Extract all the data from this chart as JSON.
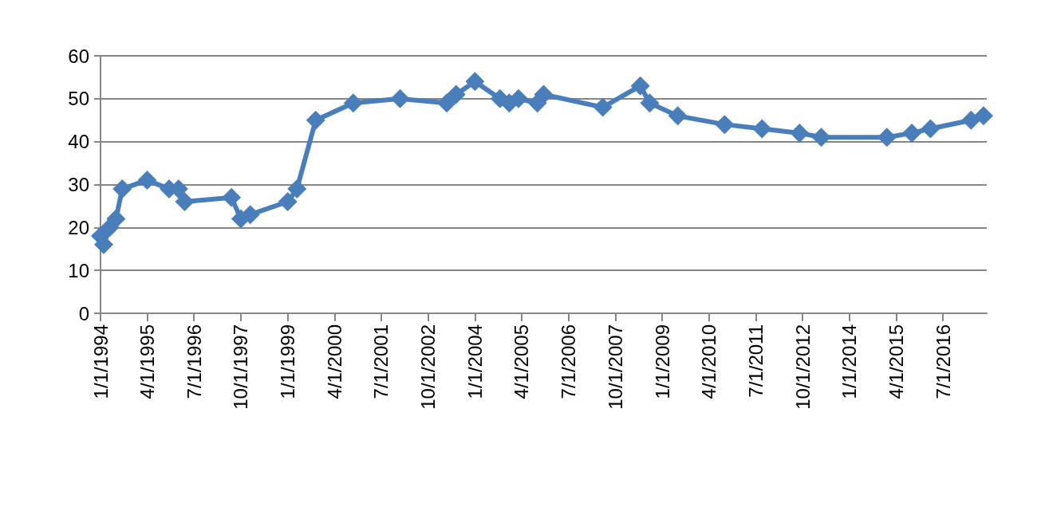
{
  "chart_data": {
    "type": "line",
    "x": [
      "1994-01",
      "1994-02",
      "1994-04",
      "1994-06",
      "1994-08",
      "1995-04",
      "1995-11",
      "1996-02",
      "1996-04",
      "1997-07",
      "1997-10",
      "1998-01",
      "1999-01",
      "1999-04",
      "1999-10",
      "2000-10",
      "2002-01",
      "2003-04",
      "2003-07",
      "2004-01",
      "2004-09",
      "2004-12",
      "2005-03",
      "2005-09",
      "2005-11",
      "2007-06",
      "2008-06",
      "2008-09",
      "2009-06",
      "2010-09",
      "2011-09",
      "2012-09",
      "2013-04",
      "2015-01",
      "2015-09",
      "2016-03",
      "2017-04",
      "2017-08"
    ],
    "series": [
      {
        "color": "#4a7ebb",
        "values": [
          18,
          16,
          20,
          22,
          29,
          31,
          29,
          29,
          26,
          27,
          22,
          23,
          26,
          29,
          45,
          49,
          50,
          49,
          51,
          54,
          50,
          49,
          50,
          49,
          51,
          48,
          53,
          49,
          46,
          44,
          43,
          42,
          41,
          41,
          42,
          43,
          45,
          46
        ]
      }
    ],
    "xlim": [
      "1994-01-01",
      "2017-09-01"
    ],
    "xticks": [
      {
        "value": "1994-01-01",
        "label": "1/1/1994"
      },
      {
        "value": "1995-04-01",
        "label": "4/1/1995"
      },
      {
        "value": "1996-07-01",
        "label": "7/1/1996"
      },
      {
        "value": "1997-10-01",
        "label": "10/1/1997"
      },
      {
        "value": "1999-01-01",
        "label": "1/1/1999"
      },
      {
        "value": "2000-04-01",
        "label": "4/1/2000"
      },
      {
        "value": "2001-07-01",
        "label": "7/1/2001"
      },
      {
        "value": "2002-10-01",
        "label": "10/1/2002"
      },
      {
        "value": "2004-01-01",
        "label": "1/1/2004"
      },
      {
        "value": "2005-04-01",
        "label": "4/1/2005"
      },
      {
        "value": "2006-07-01",
        "label": "7/1/2006"
      },
      {
        "value": "2007-10-01",
        "label": "10/1/2007"
      },
      {
        "value": "2009-01-01",
        "label": "1/1/2009"
      },
      {
        "value": "2010-04-01",
        "label": "4/1/2010"
      },
      {
        "value": "2011-07-01",
        "label": "7/1/2011"
      },
      {
        "value": "2012-10-01",
        "label": "10/1/2012"
      },
      {
        "value": "2014-01-01",
        "label": "1/1/2014"
      },
      {
        "value": "2015-04-01",
        "label": "4/1/2015"
      },
      {
        "value": "2016-07-01",
        "label": "7/1/2016"
      }
    ],
    "ylim": [
      0,
      60
    ],
    "yticks": [
      0,
      10,
      20,
      30,
      40,
      50,
      60
    ],
    "grid": "y",
    "marker": "diamond",
    "line_style": "solid"
  }
}
